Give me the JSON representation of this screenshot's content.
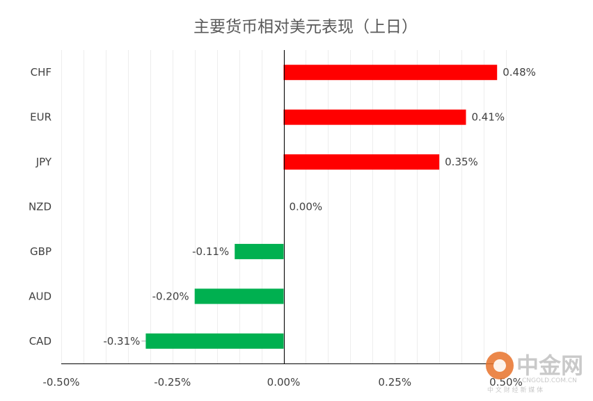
{
  "chart_data": {
    "type": "bar",
    "orientation": "horizontal",
    "title": "主要货币相对美元表现（上日）",
    "categories": [
      "CHF",
      "EUR",
      "JPY",
      "NZD",
      "GBP",
      "AUD",
      "CAD"
    ],
    "values": [
      0.48,
      0.41,
      0.35,
      0.0,
      -0.11,
      -0.2,
      -0.31
    ],
    "data_labels": [
      "0.48%",
      "0.41%",
      "0.35%",
      "0.00%",
      "-0.11%",
      "-0.20%",
      "-0.31%"
    ],
    "xlim": [
      -0.5,
      0.5
    ],
    "x_ticks": [
      -0.5,
      -0.25,
      0,
      0.25,
      0.5
    ],
    "x_tick_labels": [
      "-0.50%",
      "-0.25%",
      "0.00%",
      "0.25%",
      "0.50%"
    ],
    "positive_color": "#ff0000",
    "negative_color": "#00b050",
    "grid": true,
    "legend": "none"
  },
  "watermark": {
    "name": "中金网",
    "url": "CNGOLD.COM.CN",
    "tagline": "中 文 财 经 新 媒 体"
  }
}
